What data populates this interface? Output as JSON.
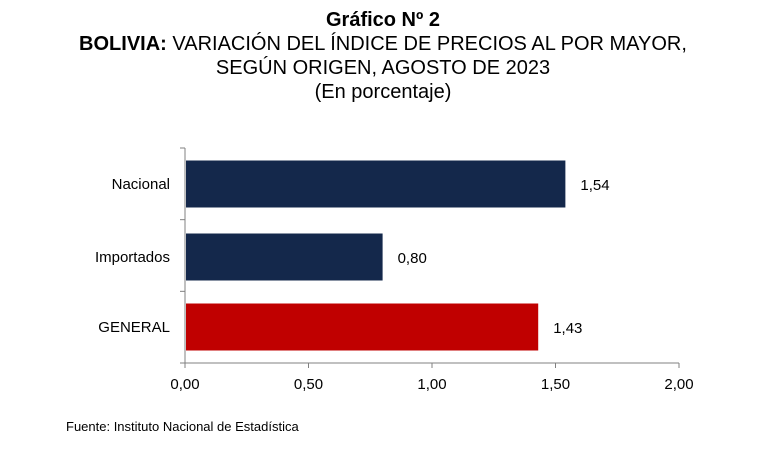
{
  "header": {
    "chart_number": "Gráfico Nº 2",
    "title_bold": "BOLIVIA:",
    "title_rest": " VARIACIÓN DEL ÍNDICE DE PRECIOS AL POR MAYOR,",
    "title_line2": "SEGÚN ORIGEN, AGOSTO DE 2023",
    "unit": "(En porcentaje)"
  },
  "source": "Fuente: Instituto Nacional de Estadística",
  "colors": {
    "series": "#14284b",
    "general": "#c00000",
    "axis": "#808080"
  },
  "chart_data": {
    "type": "bar",
    "orientation": "horizontal",
    "categories": [
      "Nacional",
      "Importados",
      "GENERAL"
    ],
    "values": [
      1.54,
      0.8,
      1.43
    ],
    "data_labels": [
      "1,54",
      "0,80",
      "1,43"
    ],
    "xlim": [
      0,
      2
    ],
    "x_ticks": [
      0,
      0.5,
      1,
      1.5,
      2
    ],
    "x_tick_labels": [
      "0,00",
      "0,50",
      "1,00",
      "1,50",
      "2,00"
    ],
    "grid": false,
    "legend": "none"
  }
}
